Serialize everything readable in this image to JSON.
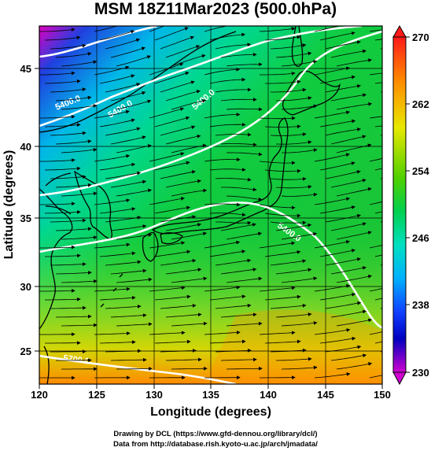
{
  "title": "MSM 18Z11Mar2023 (500.0hPa)",
  "xlabel": "Longitude (degrees)",
  "ylabel": "Latitude  (degrees)",
  "x_ticks": [
    "120",
    "125",
    "130",
    "135",
    "140",
    "145",
    "150"
  ],
  "y_ticks": [
    "45",
    "40",
    "35",
    "30",
    "25"
  ],
  "colorbar_ticks": [
    "270",
    "262",
    "254",
    "246",
    "238",
    "230"
  ],
  "contours": [
    "5400.0",
    "5400.0",
    "5400.0",
    "5400.0",
    "5700.0"
  ],
  "credit_line1": "Drawing by DCL (https://www.gfd-dennou.org/library/dcl/)",
  "credit_line2": "Data from http://database.rish.kyoto-u.ac.jp/arch/jmadata/",
  "colors": {
    "land": "#000000",
    "contour": "#ffffff",
    "grid": "#000000"
  }
}
